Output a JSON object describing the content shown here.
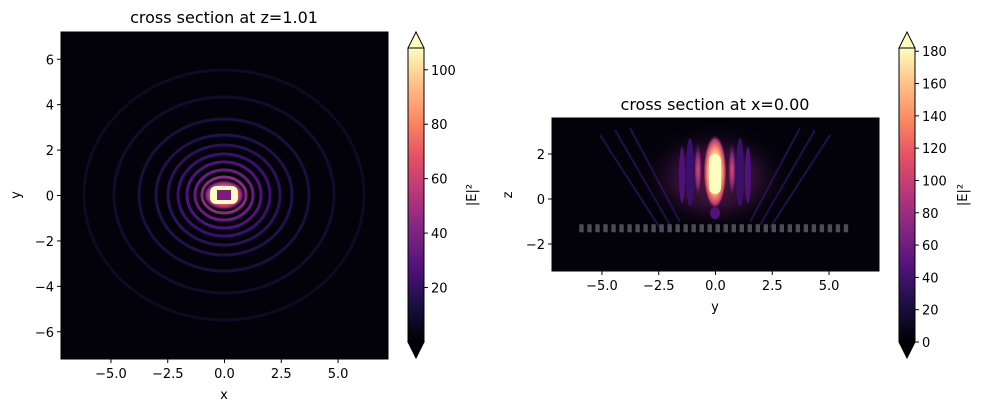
{
  "chart_data": [
    {
      "type": "heatmap",
      "title": "cross section at z=1.01",
      "xlabel": "x",
      "ylabel": "y",
      "xlim": [
        -7.2,
        7.2
      ],
      "ylim": [
        -7.2,
        7.2
      ],
      "x_ticks": [
        -5.0,
        -2.5,
        0.0,
        2.5,
        5.0
      ],
      "x_tick_labels": [
        "−5.0",
        "−2.5",
        "0.0",
        "2.5",
        "5.0"
      ],
      "y_ticks": [
        -6,
        -4,
        -2,
        0,
        2,
        4,
        6
      ],
      "y_tick_labels": [
        "−6",
        "−4",
        "−2",
        "0",
        "2",
        "4",
        "6"
      ],
      "colormap": "magma",
      "colorbar": {
        "label": "|E|²",
        "vmin": 0,
        "vmax": 108,
        "extend": "both",
        "ticks": [
          20,
          40,
          60,
          80,
          100
        ],
        "tick_labels": [
          "20",
          "40",
          "60",
          "80",
          "100"
        ]
      },
      "peak": {
        "x": 0.0,
        "y": 0.0,
        "value": 108
      }
    },
    {
      "type": "heatmap",
      "title": "cross section at x=0.00",
      "xlabel": "y",
      "ylabel": "z",
      "xlim": [
        -7.2,
        7.2
      ],
      "ylim": [
        -3.2,
        3.6
      ],
      "x_ticks": [
        -5.0,
        -2.5,
        0.0,
        2.5,
        5.0
      ],
      "x_tick_labels": [
        "−5.0",
        "−2.5",
        "0.0",
        "2.5",
        "5.0"
      ],
      "y_ticks": [
        -2,
        0,
        2
      ],
      "y_tick_labels": [
        "−2",
        "0",
        "2"
      ],
      "colormap": "magma",
      "colorbar": {
        "label": "|E|²",
        "vmin": 0,
        "vmax": 182,
        "extend": "both",
        "ticks": [
          0,
          20,
          40,
          60,
          80,
          100,
          120,
          140,
          160,
          180
        ],
        "tick_labels": [
          "0",
          "20",
          "40",
          "60",
          "80",
          "100",
          "120",
          "140",
          "160",
          "180"
        ]
      },
      "peak": {
        "y": 0.0,
        "z": 1.1,
        "value": 182
      },
      "grating": {
        "z": -1.3,
        "y_range": [
          -6.0,
          6.0
        ]
      }
    }
  ]
}
